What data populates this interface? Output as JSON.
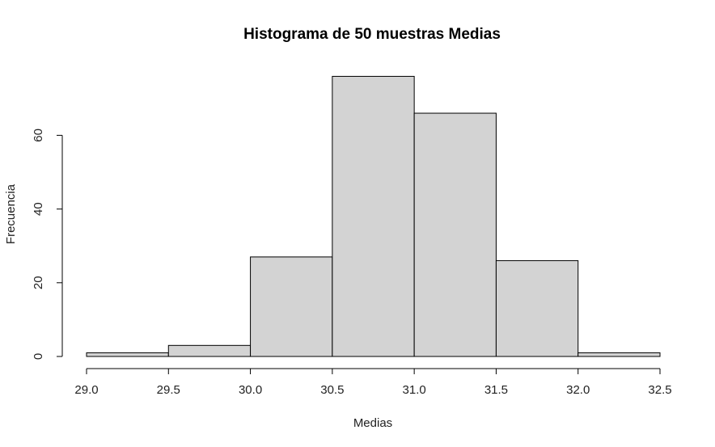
{
  "chart_data": {
    "type": "bar",
    "title": "Histograma de 50 muestras Medias",
    "xlabel": "Medias",
    "ylabel": "Frecuencia",
    "bins": [
      {
        "from": 29.0,
        "to": 29.5,
        "count": 1
      },
      {
        "from": 29.5,
        "to": 30.0,
        "count": 3
      },
      {
        "from": 30.0,
        "to": 30.5,
        "count": 27
      },
      {
        "from": 30.5,
        "to": 31.0,
        "count": 76
      },
      {
        "from": 31.0,
        "to": 31.5,
        "count": 66
      },
      {
        "from": 31.5,
        "to": 32.0,
        "count": 26
      },
      {
        "from": 32.0,
        "to": 32.5,
        "count": 1
      }
    ],
    "xlim": [
      29.0,
      32.5
    ],
    "xticks": [
      "29.0",
      "29.5",
      "30.0",
      "30.5",
      "31.0",
      "31.5",
      "32.0",
      "32.5"
    ],
    "yticks": [
      "0",
      "20",
      "40",
      "60"
    ],
    "bar_color": "#d3d3d3",
    "border_color": "#000000",
    "grid": false
  }
}
